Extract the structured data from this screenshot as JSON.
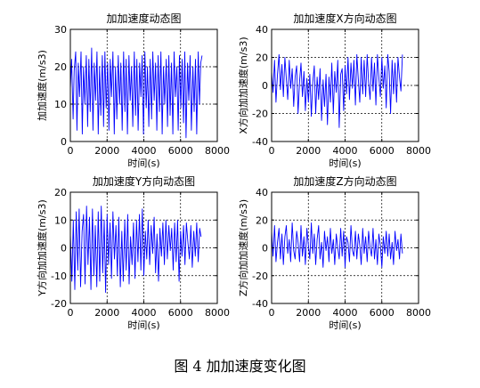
{
  "caption": "图 4  加加速度变化图",
  "chart_data": [
    {
      "type": "line",
      "title": "加加速度动态图",
      "xlabel": "时间(s)",
      "ylabel": "加加速度(m/s3)",
      "xlim": [
        0,
        8000
      ],
      "ylim": [
        0,
        30
      ],
      "xticks": [
        0,
        2000,
        4000,
        6000,
        8000
      ],
      "yticks": [
        0,
        10,
        20,
        30
      ],
      "grid": true,
      "line_color": "#0000ff",
      "series": [
        {
          "x": [
            0,
            70,
            150,
            210,
            290,
            360,
            430,
            500,
            580,
            650,
            720,
            790,
            870,
            940,
            1010,
            1080,
            1160,
            1230,
            1300,
            1370,
            1450,
            1520,
            1590,
            1660,
            1740,
            1810,
            1880,
            1950,
            2030,
            2100,
            2170,
            2240,
            2320,
            2390,
            2460,
            2530,
            2610,
            2680,
            2750,
            2820,
            2900,
            2970,
            3040,
            3110,
            3190,
            3260,
            3330,
            3400,
            3480,
            3550,
            3620,
            3690,
            3770,
            3840,
            3910,
            3980,
            4060,
            4130,
            4200,
            4270,
            4350,
            4420,
            4490,
            4560,
            4640,
            4710,
            4780,
            4850,
            4930,
            5000,
            5070,
            5140,
            5220,
            5290,
            5360,
            5430,
            5510,
            5580,
            5650,
            5720,
            5800,
            5870,
            5940,
            6010,
            6090,
            6160,
            6230,
            6300,
            6380,
            6450,
            6520,
            6590,
            6670,
            6740,
            6810,
            6880,
            6960,
            7030,
            7100,
            7170
          ],
          "y": [
            14,
            22,
            6,
            19,
            24,
            3,
            21,
            12,
            24,
            2,
            20,
            10,
            23,
            4,
            22,
            8,
            25,
            3,
            21,
            11,
            24,
            2,
            20,
            7,
            23,
            4,
            24,
            9,
            21,
            3,
            22,
            12,
            24,
            2,
            20,
            6,
            23,
            10,
            21,
            3,
            24,
            8,
            22,
            2,
            23,
            11,
            20,
            4,
            24,
            7,
            22,
            3,
            21,
            12,
            23,
            2,
            24,
            9,
            20,
            4,
            22,
            6,
            24,
            11,
            21,
            3,
            23,
            8,
            24,
            2,
            20,
            10,
            22,
            4,
            23,
            7,
            21,
            2,
            24,
            12,
            20,
            3,
            23,
            9,
            22,
            5,
            24,
            1,
            21,
            11,
            23,
            3,
            20,
            8,
            22,
            2,
            24,
            10,
            21,
            23
          ]
        }
      ]
    },
    {
      "type": "line",
      "title": "加加速度X方向动态图",
      "xlabel": "时间(s)",
      "ylabel": "X方向加加速度(m/s3)",
      "xlim": [
        0,
        8000
      ],
      "ylim": [
        -40,
        40
      ],
      "xticks": [
        0,
        2000,
        4000,
        6000,
        8000
      ],
      "yticks": [
        -40,
        -20,
        0,
        20,
        40
      ],
      "grid": true,
      "line_color": "#0000ff",
      "series": [
        {
          "x": [
            0,
            80,
            160,
            240,
            320,
            400,
            480,
            560,
            640,
            720,
            800,
            880,
            960,
            1040,
            1120,
            1200,
            1280,
            1360,
            1440,
            1520,
            1600,
            1680,
            1760,
            1840,
            1920,
            2000,
            2080,
            2160,
            2240,
            2320,
            2400,
            2480,
            2560,
            2640,
            2720,
            2800,
            2880,
            2960,
            3040,
            3120,
            3200,
            3280,
            3360,
            3440,
            3520,
            3600,
            3680,
            3760,
            3840,
            3920,
            4000,
            4080,
            4160,
            4240,
            4320,
            4400,
            4480,
            4560,
            4640,
            4720,
            4800,
            4880,
            4960,
            5040,
            5120,
            5200,
            5280,
            5360,
            5440,
            5520,
            5600,
            5680,
            5760,
            5840,
            5920,
            6000,
            6080,
            6160,
            6240,
            6320,
            6400,
            6480,
            6560,
            6640,
            6720,
            6800,
            6880,
            6960,
            7040,
            7120
          ],
          "y": [
            10,
            -5,
            18,
            -12,
            8,
            22,
            -3,
            15,
            -8,
            20,
            5,
            -10,
            18,
            -2,
            12,
            -15,
            6,
            14,
            -20,
            3,
            16,
            -8,
            10,
            -18,
            5,
            -12,
            8,
            -22,
            2,
            14,
            -20,
            6,
            -10,
            12,
            -25,
            4,
            -15,
            8,
            -28,
            6,
            -12,
            16,
            -20,
            10,
            -5,
            18,
            -30,
            8,
            12,
            -18,
            14,
            -6,
            20,
            -10,
            16,
            -2,
            18,
            -14,
            22,
            4,
            -12,
            20,
            -6,
            18,
            -8,
            22,
            2,
            -10,
            20,
            -4,
            16,
            -14,
            22,
            6,
            -8,
            20,
            -2,
            14,
            -16,
            22,
            10,
            -20,
            18,
            -6,
            16,
            -12,
            20,
            6,
            -4,
            22
          ]
        }
      ]
    },
    {
      "type": "line",
      "title": "加加速度Y方向动态图",
      "xlabel": "时间(s)",
      "ylabel": "Y方向加加速度(m/s3)",
      "xlim": [
        0,
        8000
      ],
      "ylim": [
        -20,
        20
      ],
      "xticks": [
        0,
        2000,
        4000,
        6000,
        8000
      ],
      "yticks": [
        -20,
        -10,
        0,
        10,
        20
      ],
      "grid": true,
      "line_color": "#0000ff",
      "series": [
        {
          "x": [
            0,
            80,
            160,
            240,
            320,
            400,
            480,
            560,
            640,
            720,
            800,
            880,
            960,
            1040,
            1120,
            1200,
            1280,
            1360,
            1440,
            1520,
            1600,
            1680,
            1760,
            1840,
            1920,
            2000,
            2080,
            2160,
            2240,
            2320,
            2400,
            2480,
            2560,
            2640,
            2720,
            2800,
            2880,
            2960,
            3040,
            3120,
            3200,
            3280,
            3360,
            3440,
            3520,
            3600,
            3680,
            3760,
            3840,
            3920,
            4000,
            4080,
            4160,
            4240,
            4320,
            4400,
            4480,
            4560,
            4640,
            4720,
            4800,
            4880,
            4960,
            5040,
            5120,
            5200,
            5280,
            5360,
            5440,
            5520,
            5600,
            5680,
            5760,
            5840,
            5920,
            6000,
            6080,
            6160,
            6240,
            6320,
            6400,
            6480,
            6560,
            6640,
            6720,
            6800,
            6880,
            6960,
            7040,
            7120
          ],
          "y": [
            5,
            -12,
            10,
            -15,
            13,
            -8,
            14,
            -14,
            6,
            12,
            -13,
            15,
            -6,
            11,
            -15,
            14,
            -10,
            8,
            -14,
            13,
            -12,
            15,
            -9,
            10,
            -16,
            12,
            -6,
            9,
            -11,
            13,
            -4,
            8,
            -10,
            11,
            -14,
            6,
            -12,
            10,
            -8,
            12,
            -13,
            4,
            -6,
            9,
            -11,
            10,
            -5,
            12,
            -8,
            14,
            -10,
            6,
            -4,
            10,
            -6,
            8,
            -2,
            11,
            -9,
            5,
            -12,
            7,
            -3,
            9,
            -6,
            10,
            -4,
            8,
            -1,
            7,
            -8,
            9,
            -5,
            10,
            -12,
            6,
            -3,
            8,
            -6,
            9,
            2,
            -4,
            8,
            -7,
            6,
            -3,
            9,
            -5,
            7,
            4
          ]
        }
      ]
    },
    {
      "type": "line",
      "title": "加加速度Z方向动态图",
      "xlabel": "时间(s)",
      "ylabel": "Z方向加加速度(m/s3)",
      "xlim": [
        0,
        8000
      ],
      "ylim": [
        -40,
        40
      ],
      "xticks": [
        0,
        2000,
        4000,
        6000,
        8000
      ],
      "yticks": [
        -40,
        -20,
        0,
        20,
        40
      ],
      "grid": true,
      "line_color": "#0000ff",
      "series": [
        {
          "x": [
            0,
            80,
            160,
            240,
            320,
            400,
            480,
            560,
            640,
            720,
            800,
            880,
            960,
            1040,
            1120,
            1200,
            1280,
            1360,
            1440,
            1520,
            1600,
            1680,
            1760,
            1840,
            1920,
            2000,
            2080,
            2160,
            2240,
            2320,
            2400,
            2480,
            2560,
            2640,
            2720,
            2800,
            2880,
            2960,
            3040,
            3120,
            3200,
            3280,
            3360,
            3440,
            3520,
            3600,
            3680,
            3760,
            3840,
            3920,
            4000,
            4080,
            4160,
            4240,
            4320,
            4400,
            4480,
            4560,
            4640,
            4720,
            4800,
            4880,
            4960,
            5040,
            5120,
            5200,
            5280,
            5360,
            5440,
            5520,
            5600,
            5680,
            5760,
            5840,
            5920,
            6000,
            6080,
            6160,
            6240,
            6320,
            6400,
            6480,
            6560,
            6640,
            6720,
            6800,
            6880,
            6960,
            7040,
            7120
          ],
          "y": [
            12,
            -6,
            16,
            -10,
            4,
            14,
            -8,
            10,
            -12,
            8,
            16,
            -4,
            6,
            -10,
            18,
            -2,
            -8,
            12,
            4,
            -10,
            16,
            -6,
            8,
            -12,
            14,
            2,
            -8,
            18,
            -4,
            10,
            -12,
            6,
            16,
            -8,
            4,
            -14,
            12,
            -2,
            8,
            -10,
            14,
            -4,
            6,
            -12,
            10,
            0,
            -8,
            14,
            -6,
            12,
            -14,
            8,
            4,
            -10,
            16,
            -2,
            -6,
            12,
            -8,
            10,
            2,
            -12,
            14,
            -4,
            8,
            -10,
            12,
            0,
            -6,
            14,
            -8,
            6,
            -12,
            10,
            2,
            -14,
            8,
            -4,
            12,
            -6,
            10,
            -8,
            4,
            -12,
            12,
            -2,
            6,
            -8,
            10,
            -4
          ]
        }
      ]
    }
  ]
}
